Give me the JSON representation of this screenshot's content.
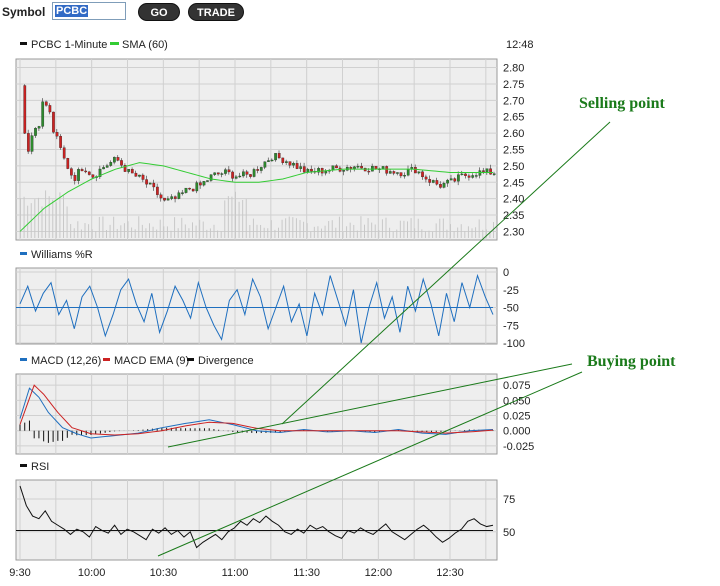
{
  "toolbar": {
    "symbol_label": "Symbol",
    "symbol_value": "PCBC",
    "go_label": "GO",
    "trade_label": "TRADE"
  },
  "colors": {
    "price_up": "#2d8a2d",
    "price_down": "#cc2222",
    "sma": "#33cc33",
    "williams": "#1f6fbf",
    "macd": "#1f6fbf",
    "macd_ema": "#cc2222",
    "divergence": "#111111",
    "rsi": "#111111",
    "annotation": "#1a7a1a",
    "panel_bg": "#eeeeee",
    "grid": "#d0d0d0"
  },
  "chart_data": [
    {
      "type": "line",
      "panel": "price",
      "title": "PCBC 1-Minute",
      "time_label": "12:48",
      "legend": [
        "PCBC 1-Minute",
        "SMA (60)"
      ],
      "ylim": [
        2.28,
        2.82
      ],
      "yticks": [
        "2.80",
        "2.75",
        "2.70",
        "2.65",
        "2.60",
        "2.55",
        "2.50",
        "2.45",
        "2.40",
        "2.35",
        "2.30"
      ],
      "price_anchors": [
        [
          "9:30",
          2.77
        ],
        [
          "9:32",
          2.55
        ],
        [
          "9:36",
          2.62
        ],
        [
          "9:40",
          2.7
        ],
        [
          "9:44",
          2.6
        ],
        [
          "9:48",
          2.52
        ],
        [
          "9:52",
          2.46
        ],
        [
          "9:56",
          2.5
        ],
        [
          "10:00",
          2.47
        ],
        [
          "10:05",
          2.5
        ],
        [
          "10:10",
          2.52
        ],
        [
          "10:15",
          2.48
        ],
        [
          "10:20",
          2.46
        ],
        [
          "10:25",
          2.43
        ],
        [
          "10:30",
          2.39
        ],
        [
          "10:35",
          2.4
        ],
        [
          "10:40",
          2.43
        ],
        [
          "10:45",
          2.44
        ],
        [
          "10:50",
          2.47
        ],
        [
          "10:55",
          2.48
        ],
        [
          "11:00",
          2.47
        ],
        [
          "11:05",
          2.47
        ],
        [
          "11:10",
          2.5
        ],
        [
          "11:15",
          2.53
        ],
        [
          "11:20",
          2.52
        ],
        [
          "11:25",
          2.5
        ],
        [
          "11:30",
          2.48
        ],
        [
          "11:40",
          2.49
        ],
        [
          "11:50",
          2.5
        ],
        [
          "12:00",
          2.49
        ],
        [
          "12:10",
          2.48
        ],
        [
          "12:15",
          2.49
        ],
        [
          "12:20",
          2.46
        ],
        [
          "12:25",
          2.44
        ],
        [
          "12:30",
          2.45
        ],
        [
          "12:35",
          2.47
        ],
        [
          "12:40",
          2.48
        ],
        [
          "12:48",
          2.48
        ]
      ],
      "sma_anchors": [
        [
          "9:30",
          2.3
        ],
        [
          "9:40",
          2.37
        ],
        [
          "9:50",
          2.42
        ],
        [
          "10:00",
          2.46
        ],
        [
          "10:10",
          2.49
        ],
        [
          "10:20",
          2.51
        ],
        [
          "10:30",
          2.5
        ],
        [
          "10:40",
          2.48
        ],
        [
          "10:50",
          2.46
        ],
        [
          "11:00",
          2.45
        ],
        [
          "11:10",
          2.45
        ],
        [
          "11:20",
          2.46
        ],
        [
          "11:30",
          2.48
        ],
        [
          "11:45",
          2.49
        ],
        [
          "12:00",
          2.49
        ],
        [
          "12:15",
          2.49
        ],
        [
          "12:30",
          2.48
        ],
        [
          "12:48",
          2.48
        ]
      ]
    },
    {
      "type": "line",
      "panel": "williams",
      "legend": [
        "Williams %R"
      ],
      "ylim": [
        -100,
        0
      ],
      "yticks": [
        "0",
        "-25",
        "-50",
        "-75",
        "-100"
      ],
      "reference_line": -50,
      "values": [
        -45,
        -20,
        -55,
        -30,
        -15,
        -60,
        -40,
        -80,
        -35,
        -20,
        -50,
        -90,
        -60,
        -25,
        -10,
        -45,
        -70,
        -30,
        -85,
        -55,
        -20,
        -40,
        -65,
        -15,
        -50,
        -75,
        -95,
        -40,
        -25,
        -60,
        -10,
        -35,
        -80,
        -50,
        -20,
        -70,
        -45,
        -90,
        -30,
        -60,
        -5,
        -40,
        -75,
        -25,
        -100,
        -50,
        -15,
        -65,
        -35,
        -85,
        -20,
        -55,
        -10,
        -45,
        -90,
        -30,
        -70,
        -15,
        -50,
        -5,
        -35,
        -60
      ]
    },
    {
      "type": "line",
      "panel": "macd",
      "legend": [
        "MACD (12,26)",
        "MACD EMA (9)",
        "Divergence"
      ],
      "ylim": [
        -0.035,
        0.09
      ],
      "yticks": [
        "0.075",
        "0.050",
        "0.025",
        "0.000",
        "-0.025"
      ],
      "macd_anchors": [
        [
          0,
          0.02
        ],
        [
          4,
          0.07
        ],
        [
          8,
          0.055
        ],
        [
          12,
          0.03
        ],
        [
          18,
          0.005
        ],
        [
          24,
          -0.005
        ],
        [
          30,
          -0.012
        ],
        [
          40,
          -0.008
        ],
        [
          50,
          -0.004
        ],
        [
          60,
          0.005
        ],
        [
          70,
          0.012
        ],
        [
          80,
          0.018
        ],
        [
          90,
          0.01
        ],
        [
          100,
          0.0
        ],
        [
          110,
          -0.003
        ],
        [
          120,
          0.002
        ],
        [
          130,
          -0.002
        ],
        [
          140,
          0.0
        ],
        [
          150,
          -0.003
        ],
        [
          160,
          0.002
        ],
        [
          170,
          -0.004
        ],
        [
          180,
          -0.006
        ],
        [
          190,
          0.0
        ],
        [
          200,
          0.002
        ]
      ],
      "ema_anchors": [
        [
          0,
          0.01
        ],
        [
          6,
          0.075
        ],
        [
          10,
          0.06
        ],
        [
          16,
          0.03
        ],
        [
          22,
          0.005
        ],
        [
          30,
          -0.005
        ],
        [
          40,
          -0.007
        ],
        [
          50,
          -0.005
        ],
        [
          60,
          0.0
        ],
        [
          70,
          0.008
        ],
        [
          80,
          0.014
        ],
        [
          90,
          0.012
        ],
        [
          100,
          0.004
        ],
        [
          110,
          0.0
        ],
        [
          120,
          0.0
        ],
        [
          130,
          0.0
        ],
        [
          140,
          0.0
        ],
        [
          150,
          0.0
        ],
        [
          160,
          0.0
        ],
        [
          170,
          -0.002
        ],
        [
          180,
          -0.004
        ],
        [
          190,
          -0.002
        ],
        [
          200,
          0.001
        ]
      ]
    },
    {
      "type": "line",
      "panel": "rsi",
      "legend": [
        "RSI"
      ],
      "ylim": [
        30,
        88
      ],
      "yticks": [
        "75",
        "50"
      ],
      "reference_line": 51,
      "values": [
        85,
        70,
        62,
        60,
        66,
        58,
        55,
        52,
        48,
        52,
        50,
        46,
        54,
        51,
        49,
        55,
        48,
        52,
        50,
        47,
        44,
        52,
        49,
        53,
        48,
        51,
        46,
        50,
        38,
        42,
        45,
        48,
        44,
        50,
        53,
        58,
        55,
        60,
        57,
        62,
        58,
        55,
        50,
        48,
        52,
        49,
        55,
        52,
        54,
        50,
        47,
        45,
        51,
        49,
        53,
        50,
        48,
        52,
        56,
        50,
        47,
        44,
        48,
        52,
        55,
        51,
        46,
        42,
        45,
        49,
        52,
        58,
        60,
        56,
        54,
        55
      ]
    },
    {
      "type": "table",
      "panel": "x-axis",
      "xticks": [
        "9:30",
        "10:00",
        "10:30",
        "11:00",
        "11:30",
        "12:00",
        "12:30"
      ]
    }
  ],
  "annotations": {
    "selling_point": "Selling point",
    "buying_point": "Buying point"
  }
}
